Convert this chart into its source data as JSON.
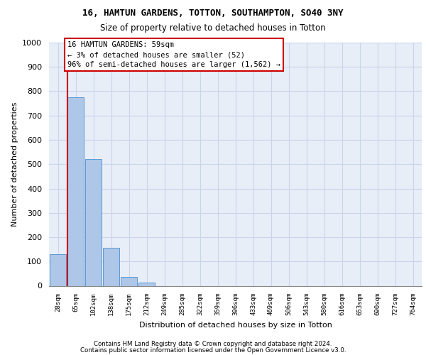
{
  "title_line1": "16, HAMTUN GARDENS, TOTTON, SOUTHAMPTON, SO40 3NY",
  "title_line2": "Size of property relative to detached houses in Totton",
  "xlabel": "Distribution of detached houses by size in Totton",
  "ylabel": "Number of detached properties",
  "bar_labels": [
    "28sqm",
    "65sqm",
    "102sqm",
    "138sqm",
    "175sqm",
    "212sqm",
    "249sqm",
    "285sqm",
    "322sqm",
    "359sqm",
    "396sqm",
    "433sqm",
    "469sqm",
    "506sqm",
    "543sqm",
    "580sqm",
    "616sqm",
    "653sqm",
    "690sqm",
    "727sqm",
    "764sqm"
  ],
  "bar_heights": [
    130,
    775,
    520,
    155,
    37,
    13,
    0,
    0,
    0,
    0,
    0,
    0,
    0,
    0,
    0,
    0,
    0,
    0,
    0,
    0,
    0
  ],
  "bar_color": "#aec6e8",
  "bar_edge_color": "#5a9ad4",
  "annotation_title": "16 HAMTUN GARDENS: 59sqm",
  "annotation_line2": "← 3% of detached houses are smaller (52)",
  "annotation_line3": "96% of semi-detached houses are larger (1,562) →",
  "annotation_box_color": "#ffffff",
  "annotation_box_edge_color": "#cc0000",
  "vline_color": "#cc0000",
  "ylim": [
    0,
    1000
  ],
  "yticks": [
    0,
    100,
    200,
    300,
    400,
    500,
    600,
    700,
    800,
    900,
    1000
  ],
  "grid_color": "#c8d4e8",
  "bg_color": "#e8eef8",
  "footer_line1": "Contains HM Land Registry data © Crown copyright and database right 2024.",
  "footer_line2": "Contains public sector information licensed under the Open Government Licence v3.0."
}
